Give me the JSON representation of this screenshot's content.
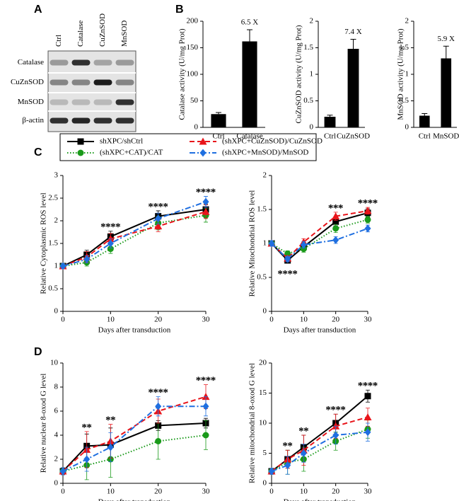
{
  "panel_labels": [
    "A",
    "B",
    "C",
    "D"
  ],
  "blot": {
    "lanes": [
      "Ctrl",
      "Catalase",
      "CuZnSOD",
      "MnSOD"
    ],
    "rows": [
      "Catalase",
      "CuZnSOD",
      "MnSOD",
      "β-actin"
    ]
  },
  "chart_data": [
    {
      "type": "bar",
      "y_label": "Catalase activity (U/mg Prot)",
      "categories": [
        "Ctrl",
        "Catalase"
      ],
      "values": [
        25,
        162
      ],
      "errors": [
        3,
        22
      ],
      "color": "#000000",
      "ylim": [
        0,
        200
      ],
      "yticks": [
        0,
        50,
        100,
        150,
        200
      ],
      "annotation": "6.5 X"
    },
    {
      "type": "bar",
      "y_label": "CuZnSOD activity (U/mg Prot)",
      "categories": [
        "Ctrl",
        "CuZnSOD"
      ],
      "values": [
        0.2,
        1.48
      ],
      "errors": [
        0.03,
        0.18
      ],
      "color": "#000000",
      "ylim": [
        0,
        2
      ],
      "yticks": [
        0,
        0.5,
        1,
        1.5,
        2
      ],
      "annotation": "7.4 X"
    },
    {
      "type": "bar",
      "y_label": "MnSOD activity (U/mg Prot)",
      "categories": [
        "Ctrl",
        "MnSOD"
      ],
      "values": [
        0.22,
        1.3
      ],
      "errors": [
        0.04,
        0.23
      ],
      "color": "#000000",
      "ylim": [
        0,
        2
      ],
      "yticks": [
        0,
        0.5,
        1,
        1.5,
        2
      ],
      "annotation": "5.9 X"
    },
    {
      "type": "line",
      "y_label": "Relative Cytoplasmic ROS level",
      "x_label": "Days after transduction",
      "x": [
        0,
        5,
        10,
        20,
        30
      ],
      "xlim": [
        0,
        30
      ],
      "xticks": [
        0,
        10,
        20,
        30
      ],
      "ylim": [
        0,
        3
      ],
      "yticks": [
        0,
        0.5,
        1,
        1.5,
        2,
        2.5,
        3
      ],
      "series": [
        {
          "name": "shXPC/shCtrl",
          "color": "#000000",
          "line_style": "solid",
          "marker": "square",
          "values": [
            1,
            1.25,
            1.65,
            2.1,
            2.25
          ],
          "errors": [
            0.05,
            0.1,
            0.12,
            0.12,
            0.12
          ]
        },
        {
          "name": "(shXPC+CAT)/CAT",
          "color": "#1a9a1a",
          "line_style": "dotted",
          "marker": "circle",
          "values": [
            1,
            1.08,
            1.38,
            1.95,
            2.12
          ],
          "errors": [
            0.05,
            0.08,
            0.1,
            0.15,
            0.15
          ]
        },
        {
          "name": "(shXPC+CuZnSOD)/CuZnSOD",
          "color": "#e8141a",
          "line_style": "dashed",
          "marker": "triangle",
          "values": [
            1,
            1.2,
            1.6,
            1.88,
            2.2
          ],
          "errors": [
            0.05,
            0.12,
            0.12,
            0.12,
            0.15
          ]
        },
        {
          "name": "(shXPC+MnSOD)/MnSOD",
          "color": "#1f6fe0",
          "line_style": "dashdot",
          "marker": "diamond",
          "values": [
            1,
            1.15,
            1.5,
            2.05,
            2.42
          ],
          "errors": [
            0.05,
            0.08,
            0.1,
            0.12,
            0.12
          ]
        }
      ],
      "annotations": [
        {
          "x": 10,
          "text": "*",
          "series": [
            0,
            1,
            2,
            3
          ]
        },
        {
          "x": 20,
          "text": "*",
          "series": [
            0,
            1,
            2,
            3
          ]
        },
        {
          "x": 30,
          "text": "*",
          "series": [
            0,
            1,
            2,
            3
          ]
        }
      ]
    },
    {
      "type": "line",
      "y_label": "Relative Mitochondrial ROS level",
      "x_label": "Days after transduction",
      "x": [
        0,
        5,
        10,
        20,
        30
      ],
      "xlim": [
        0,
        30
      ],
      "xticks": [
        0,
        10,
        20,
        30
      ],
      "ylim": [
        0,
        2
      ],
      "yticks": [
        0,
        0.5,
        1,
        1.5,
        2
      ],
      "series": [
        {
          "color": "#000000",
          "line_style": "solid",
          "marker": "square",
          "values": [
            1,
            0.75,
            0.95,
            1.32,
            1.45
          ],
          "errors": [
            0.04,
            0.04,
            0.05,
            0.06,
            0.06
          ]
        },
        {
          "color": "#1a9a1a",
          "line_style": "dotted",
          "marker": "circle",
          "values": [
            1,
            0.85,
            0.92,
            1.22,
            1.35
          ],
          "errors": [
            0.04,
            0.04,
            0.05,
            0.06,
            0.05
          ]
        },
        {
          "color": "#e8141a",
          "line_style": "dashed",
          "marker": "triangle",
          "values": [
            1,
            0.78,
            1.02,
            1.4,
            1.48
          ],
          "errors": [
            0.04,
            0.04,
            0.05,
            0.06,
            0.05
          ]
        },
        {
          "color": "#1f6fe0",
          "line_style": "dashdot",
          "marker": "diamond",
          "values": [
            1,
            0.77,
            0.98,
            1.05,
            1.22
          ],
          "errors": [
            0.04,
            0.04,
            0.05,
            0.05,
            0.05
          ]
        }
      ],
      "annotations": [
        {
          "x": 5,
          "text": "*",
          "series": [
            0,
            1,
            2,
            3
          ],
          "position": "below"
        },
        {
          "x": 20,
          "text": "*",
          "series": [
            0,
            1,
            2
          ]
        },
        {
          "x": 30,
          "text": "*",
          "series": [
            0,
            1,
            2,
            3
          ]
        }
      ]
    },
    {
      "type": "line",
      "y_label": "Relative nuclear 8-oxod G level",
      "x_label": "Days after transduction",
      "x": [
        0,
        5,
        10,
        20,
        30
      ],
      "xlim": [
        0,
        30
      ],
      "xticks": [
        0,
        10,
        20,
        30
      ],
      "ylim": [
        0,
        10
      ],
      "yticks": [
        0,
        2,
        4,
        6,
        8,
        10
      ],
      "series": [
        {
          "color": "#000000",
          "line_style": "solid",
          "marker": "square",
          "values": [
            1,
            3.1,
            3.2,
            4.8,
            5
          ],
          "errors": [
            0.3,
            1,
            1.4,
            0.4,
            0.4
          ]
        },
        {
          "color": "#1a9a1a",
          "line_style": "dotted",
          "marker": "circle",
          "values": [
            1,
            1.5,
            2,
            3.5,
            4
          ],
          "errors": [
            0.3,
            1.2,
            1.5,
            1.5,
            1.2
          ]
        },
        {
          "color": "#e8141a",
          "line_style": "dashed",
          "marker": "triangle",
          "values": [
            1,
            2.8,
            3.5,
            6,
            7.2
          ],
          "errors": [
            0.3,
            1.5,
            1.4,
            1,
            1
          ]
        },
        {
          "color": "#1f6fe0",
          "line_style": "dashdot",
          "marker": "diamond",
          "values": [
            1,
            2,
            3,
            6.4,
            6.4
          ],
          "errors": [
            0.3,
            1,
            1.2,
            0.8,
            0.8
          ]
        }
      ],
      "annotations": [
        {
          "x": 5,
          "text": "*",
          "series": [
            0,
            2
          ]
        },
        {
          "x": 10,
          "text": "*",
          "series": [
            0,
            2
          ]
        },
        {
          "x": 20,
          "text": "*",
          "series": [
            0,
            1,
            2,
            3
          ]
        },
        {
          "x": 30,
          "text": "*",
          "series": [
            0,
            1,
            2,
            3
          ]
        }
      ]
    },
    {
      "type": "line",
      "y_label": "Relative mitochondrial 8-oxod G level",
      "x_label": "Days after transduction",
      "x": [
        0,
        5,
        10,
        20,
        30
      ],
      "xlim": [
        0,
        30
      ],
      "xticks": [
        0,
        10,
        20,
        30
      ],
      "ylim": [
        0,
        20
      ],
      "yticks": [
        0,
        5,
        10,
        15,
        20
      ],
      "series": [
        {
          "color": "#000000",
          "line_style": "solid",
          "marker": "square",
          "values": [
            2,
            4,
            6,
            10,
            14.5
          ],
          "errors": [
            0.5,
            1.5,
            2,
            1.5,
            1
          ]
        },
        {
          "color": "#1a9a1a",
          "line_style": "dotted",
          "marker": "circle",
          "values": [
            2,
            3.5,
            4,
            7,
            9
          ],
          "errors": [
            0.5,
            2,
            2,
            1.5,
            1.5
          ]
        },
        {
          "color": "#e8141a",
          "line_style": "dashed",
          "marker": "triangle",
          "values": [
            2,
            4,
            5.5,
            9.5,
            11
          ],
          "errors": [
            0.5,
            1.5,
            2.5,
            2,
            1.5
          ]
        },
        {
          "color": "#1f6fe0",
          "line_style": "dashdot",
          "marker": "diamond",
          "values": [
            2,
            3,
            5,
            8,
            8.5
          ],
          "errors": [
            0.5,
            1.5,
            1.5,
            1.5,
            1.5
          ]
        }
      ],
      "annotations": [
        {
          "x": 5,
          "text": "*",
          "series": [
            0,
            2
          ]
        },
        {
          "x": 10,
          "text": "*",
          "series": [
            0,
            2
          ]
        },
        {
          "x": 20,
          "text": "*",
          "series": [
            0,
            1,
            2,
            3
          ]
        },
        {
          "x": 30,
          "text": "*",
          "series": [
            0,
            1,
            2,
            3
          ]
        }
      ]
    }
  ]
}
